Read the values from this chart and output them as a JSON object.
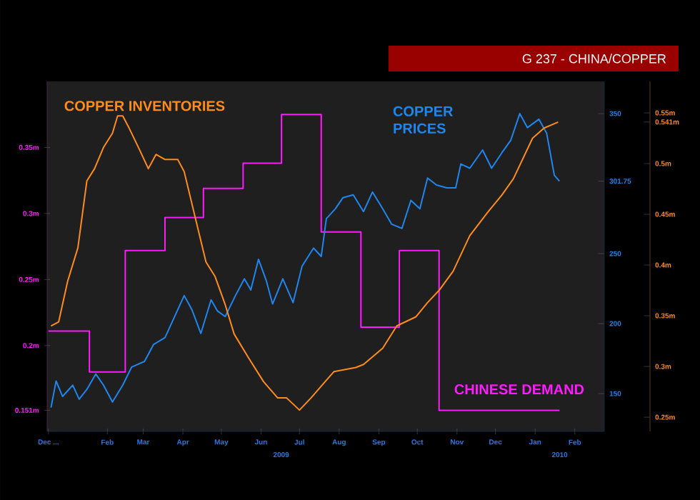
{
  "chart_data": {
    "type": "line",
    "title": "G 237 - CHINA/COPPER",
    "xlim": [
      "2008-12-30",
      "2010-03-10"
    ],
    "xticks": [
      {
        "value": "2008-12-31",
        "label": "Dec ..."
      },
      {
        "value": "2009-02-15",
        "label": "Feb"
      },
      {
        "value": "2009-03-15",
        "label": "Mar"
      },
      {
        "value": "2009-04-15",
        "label": "Apr"
      },
      {
        "value": "2009-05-15",
        "label": "May"
      },
      {
        "value": "2009-06-15",
        "label": "Jun"
      },
      {
        "value": "2009-07-15",
        "label": "Jul"
      },
      {
        "value": "2009-08-15",
        "label": "Aug"
      },
      {
        "value": "2009-09-15",
        "label": "Sep"
      },
      {
        "value": "2009-10-15",
        "label": "Oct"
      },
      {
        "value": "2009-11-15",
        "label": "Nov"
      },
      {
        "value": "2009-12-15",
        "label": "Dec"
      },
      {
        "value": "2010-01-15",
        "label": "Jan"
      },
      {
        "value": "2010-02-15",
        "label": "Feb"
      }
    ],
    "ylim": [
      0.135,
      0.4
    ],
    "yticks": [
      {
        "value": 0.151,
        "label": "0.151m"
      },
      {
        "value": 0.2,
        "label": "0.2m"
      },
      {
        "value": 0.25,
        "label": "0.25m"
      },
      {
        "value": 0.3,
        "label": "0.3m"
      },
      {
        "value": 0.35,
        "label": "0.35m"
      }
    ],
    "y2lim": [
      123,
      373
    ],
    "y2ticks": [
      150,
      200,
      250,
      {
        "value": 301.75,
        "label": "301.75"
      },
      350
    ],
    "y3lim": [
      0.236,
      0.581
    ],
    "y3ticks": [
      {
        "value": 0.25,
        "label": "0.25m"
      },
      {
        "value": 0.3,
        "label": "0.3m"
      },
      {
        "value": 0.35,
        "label": "0.35m"
      },
      {
        "value": 0.4,
        "label": "0.4m"
      },
      {
        "value": 0.45,
        "label": "0.45m"
      },
      {
        "value": 0.5,
        "label": "0.5m"
      },
      {
        "value": 0.541,
        "label": "0.541m"
      },
      {
        "value": 0.55,
        "label": "0.55m"
      }
    ],
    "annotations": [
      "2009",
      "2010"
    ],
    "series": [
      {
        "name": "COPPER INVENTORIES",
        "color": "#ff8c1a",
        "axis": "y3",
        "x": [
          "2009-01-02",
          "2009-01-08",
          "2009-01-15",
          "2009-01-23",
          "2009-01-30",
          "2009-02-05",
          "2009-02-12",
          "2009-02-19",
          "2009-02-23",
          "2009-02-27",
          "2009-03-04",
          "2009-03-12",
          "2009-03-19",
          "2009-03-25",
          "2009-04-01",
          "2009-04-11",
          "2009-04-16",
          "2009-04-24",
          "2009-05-03",
          "2009-05-10",
          "2009-05-18",
          "2009-05-25",
          "2009-06-05",
          "2009-06-17",
          "2009-06-28",
          "2009-07-05",
          "2009-07-15",
          "2009-07-24",
          "2009-08-04",
          "2009-08-11",
          "2009-08-28",
          "2009-09-03",
          "2009-09-18",
          "2009-09-29",
          "2009-10-14",
          "2009-10-23",
          "2009-11-01",
          "2009-11-12",
          "2009-11-25",
          "2009-12-09",
          "2009-12-20",
          "2009-12-29",
          "2010-01-13",
          "2010-01-22",
          "2010-02-02"
        ],
        "values": [
          0.34,
          0.344,
          0.384,
          0.417,
          0.483,
          0.495,
          0.516,
          0.53,
          0.547,
          0.547,
          0.535,
          0.514,
          0.495,
          0.509,
          0.504,
          0.504,
          0.492,
          0.45,
          0.403,
          0.389,
          0.361,
          0.332,
          0.309,
          0.285,
          0.269,
          0.269,
          0.257,
          0.269,
          0.285,
          0.295,
          0.299,
          0.302,
          0.318,
          0.34,
          0.349,
          0.363,
          0.375,
          0.394,
          0.429,
          0.452,
          0.469,
          0.485,
          0.525,
          0.535,
          0.541
        ]
      },
      {
        "name": "COPPER PRICES",
        "color": "#1f86ee",
        "axis": "y2",
        "x": [
          "2009-01-02",
          "2009-01-06",
          "2009-01-11",
          "2009-01-19",
          "2009-01-24",
          "2009-01-30",
          "2009-02-06",
          "2009-02-12",
          "2009-02-19",
          "2009-02-27",
          "2009-03-06",
          "2009-03-16",
          "2009-03-23",
          "2009-04-01",
          "2009-04-07",
          "2009-04-16",
          "2009-04-22",
          "2009-04-29",
          "2009-05-07",
          "2009-05-12",
          "2009-05-18",
          "2009-05-26",
          "2009-06-02",
          "2009-06-07",
          "2009-06-13",
          "2009-06-19",
          "2009-06-24",
          "2009-07-02",
          "2009-07-10",
          "2009-07-17",
          "2009-07-26",
          "2009-08-01",
          "2009-08-05",
          "2009-08-12",
          "2009-08-18",
          "2009-08-26",
          "2009-09-03",
          "2009-09-10",
          "2009-09-18",
          "2009-09-25",
          "2009-10-03",
          "2009-10-10",
          "2009-10-17",
          "2009-10-23",
          "2009-10-30",
          "2009-11-07",
          "2009-11-14",
          "2009-11-18",
          "2009-11-25",
          "2009-12-05",
          "2009-12-12",
          "2009-12-20",
          "2009-12-27",
          "2010-01-03",
          "2010-01-09",
          "2010-01-18",
          "2010-01-24",
          "2010-01-30",
          "2010-02-03"
        ],
        "values": [
          140,
          159,
          148,
          156,
          146,
          153,
          164,
          156,
          144,
          156,
          169,
          173,
          185,
          190,
          202,
          220,
          210,
          193,
          217,
          209,
          205,
          220,
          232,
          224,
          246,
          231,
          214,
          232,
          215,
          241,
          254,
          248,
          275,
          282,
          290,
          292,
          280,
          294,
          282,
          271,
          268,
          288,
          282,
          304,
          299,
          297,
          297,
          314,
          311,
          324,
          311,
          322,
          331,
          350,
          340,
          346,
          336,
          306,
          301.75
        ]
      },
      {
        "name": "CHINESE DEMAND",
        "color": "#ff1aff",
        "axis": "y",
        "type": "step",
        "x": [
          "2008-12-31",
          "2009-02-01",
          "2009-03-01",
          "2009-04-01",
          "2009-05-01",
          "2009-06-01",
          "2009-07-01",
          "2009-08-01",
          "2009-09-01",
          "2009-10-01",
          "2009-11-01",
          "2010-02-03"
        ],
        "values": [
          0.211,
          0.18,
          0.272,
          0.297,
          0.319,
          0.338,
          0.375,
          0.286,
          0.214,
          0.272,
          0.151,
          0.151
        ]
      }
    ]
  }
}
